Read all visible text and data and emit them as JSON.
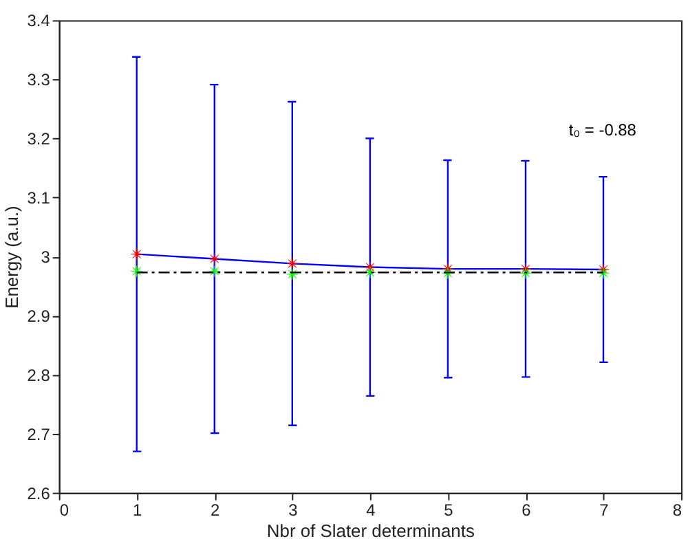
{
  "chart_data": {
    "type": "line",
    "xlabel": "Nbr of Slater determinants",
    "ylabel": "Energy (a.u.)",
    "x": [
      1,
      2,
      3,
      4,
      5,
      6,
      7
    ],
    "xlim": [
      0,
      8
    ],
    "xticks": [
      0,
      1,
      2,
      3,
      4,
      5,
      6,
      7,
      8
    ],
    "ylim": [
      2.6,
      3.4
    ],
    "yticks": [
      {
        "value": 2.6,
        "label": "2.6"
      },
      {
        "value": 2.7,
        "label": "2.7"
      },
      {
        "value": 2.8,
        "label": "2.8"
      },
      {
        "value": 2.9,
        "label": "2.9"
      },
      {
        "value": 3.0,
        "label": "3"
      },
      {
        "value": 3.1,
        "label": "3.1"
      },
      {
        "value": 3.2,
        "label": "3.2"
      },
      {
        "value": 3.3,
        "label": "3.3"
      },
      {
        "value": 3.4,
        "label": "3.4"
      }
    ],
    "series": [
      {
        "color": "#0000ff",
        "marker": "none",
        "values": [
          3.004,
          2.996,
          2.988,
          2.982,
          2.979,
          2.979,
          2.978
        ],
        "errors": [
          0.334,
          0.295,
          0.274,
          0.218,
          0.184,
          0.183,
          0.157
        ]
      },
      {
        "type": "scatter",
        "color": "#ff0000",
        "marker": "star",
        "values": [
          3.004,
          2.996,
          2.988,
          2.982,
          2.979,
          2.979,
          2.978
        ]
      },
      {
        "type": "scatter",
        "color": "#00ff00",
        "marker": "star",
        "values": [
          2.975,
          2.975,
          2.97,
          2.973,
          2.972,
          2.972,
          2.972
        ]
      }
    ],
    "ref_lines": [
      {
        "axis": "y",
        "value": 2.973,
        "color": "#000000",
        "line_style": "dashed"
      }
    ],
    "annotations": [
      "t₀ = -0.88"
    ],
    "legend": false
  }
}
